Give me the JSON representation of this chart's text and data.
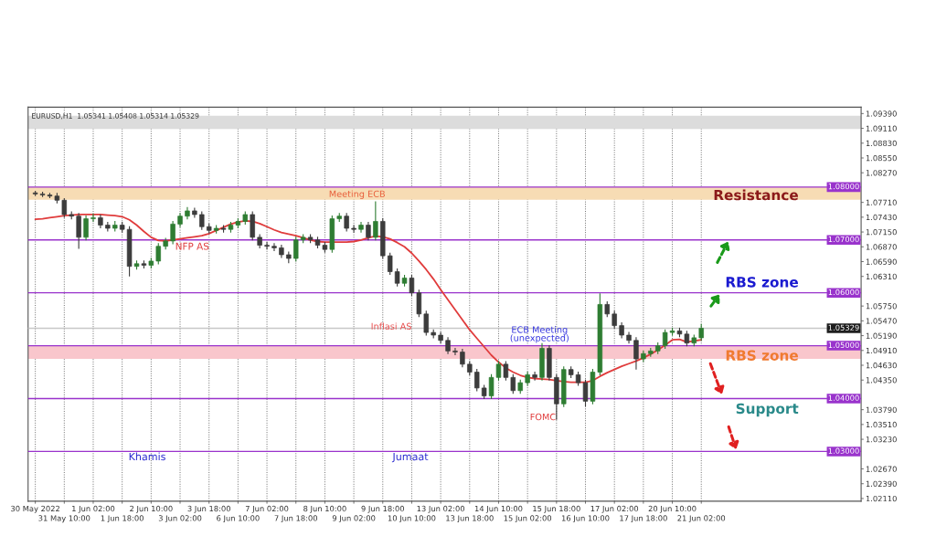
{
  "chart_data": {
    "type": "candlestick",
    "categories": [
      "30 May 2022",
      null,
      null,
      null,
      "31 May 10:00",
      null,
      null,
      null,
      "1 Jun 02:00",
      null,
      null,
      null,
      "1 Jun 18:00",
      null,
      null,
      null,
      "2 Jun 10:00",
      null,
      null,
      null,
      "3 Jun 02:00",
      null,
      null,
      null,
      "3 Jun 18:00",
      null,
      null,
      null,
      "6 Jun 10:00",
      null,
      null,
      null,
      "7 Jun 02:00",
      null,
      null,
      null,
      "7 Jun 18:00",
      null,
      null,
      null,
      "8 Jun 10:00",
      null,
      null,
      null,
      "9 Jun 02:00",
      null,
      null,
      null,
      "9 Jun 18:00",
      null,
      null,
      null,
      "10 Jun 10:00",
      null,
      null,
      null,
      "13 Jun 02:00",
      null,
      null,
      null,
      "13 Jun 18:00",
      null,
      null,
      null,
      "14 Jun 10:00",
      null,
      null,
      null,
      "15 Jun 02:00",
      null,
      null,
      null,
      "15 Jun 18:00",
      null,
      null,
      null,
      "16 Jun 10:00",
      null,
      null,
      null,
      "17 Jun 02:00",
      null,
      null,
      null,
      "17 Jun 18:00",
      null,
      null,
      null,
      "20 Jun 10:00",
      null,
      null,
      null,
      "21 Jun 02:00"
    ],
    "ylim": [
      1.0206,
      1.0951
    ],
    "yticks": [
      {
        "value": 1.0211,
        "label": "1.02110"
      },
      {
        "value": 1.0239,
        "label": "1.02390"
      },
      {
        "value": 1.0267,
        "label": "1.02670"
      },
      {
        "value": 1.0323,
        "label": "1.03230"
      },
      {
        "value": 1.0351,
        "label": "1.03510"
      },
      {
        "value": 1.0379,
        "label": "1.03790"
      },
      {
        "value": 1.0435,
        "label": "1.04350"
      },
      {
        "value": 1.0463,
        "label": "1.04630"
      },
      {
        "value": 1.0491,
        "label": "1.04910"
      },
      {
        "value": 1.0519,
        "label": "1.05190"
      },
      {
        "value": 1.0547,
        "label": "1.05470"
      },
      {
        "value": 1.0575,
        "label": "1.05750"
      },
      {
        "value": 1.0631,
        "label": "1.06310"
      },
      {
        "value": 1.0659,
        "label": "1.06590"
      },
      {
        "value": 1.0687,
        "label": "1.06870"
      },
      {
        "value": 1.0715,
        "label": "1.07150"
      },
      {
        "value": 1.0743,
        "label": "1.07430"
      },
      {
        "value": 1.0771,
        "label": "1.07710"
      },
      {
        "value": 1.0827,
        "label": "1.08270"
      },
      {
        "value": 1.0855,
        "label": "1.08550"
      },
      {
        "value": 1.0883,
        "label": "1.08830"
      },
      {
        "value": 1.0911,
        "label": "1.09110"
      },
      {
        "value": 1.0939,
        "label": "1.09390"
      }
    ],
    "grid": "x",
    "series": [
      {
        "ohlc": [
          [
            1.0789,
            1.0793,
            1.0783,
            1.0787
          ],
          [
            1.0787,
            1.0791,
            1.0781,
            1.0785
          ],
          [
            1.0785,
            1.0789,
            1.0779,
            1.0783
          ],
          [
            1.0783,
            1.0789,
            1.0769,
            1.0775
          ],
          [
            1.0775,
            1.0779,
            1.0742,
            1.0748
          ],
          [
            1.0748,
            1.0754,
            1.0739,
            1.0745
          ],
          [
            1.0745,
            1.0751,
            1.0683,
            1.0705
          ],
          [
            1.0705,
            1.0746,
            1.0699,
            1.074
          ],
          [
            1.074,
            1.075,
            1.0734,
            1.0742
          ],
          [
            1.0742,
            1.0748,
            1.0722,
            1.0728
          ],
          [
            1.0728,
            1.0734,
            1.0716,
            1.0722
          ],
          [
            1.0722,
            1.0736,
            1.0716,
            1.0728
          ],
          [
            1.0728,
            1.0734,
            1.0714,
            1.072
          ],
          [
            1.072,
            1.0726,
            1.0631,
            1.065
          ],
          [
            1.065,
            1.0661,
            1.0644,
            1.0655
          ],
          [
            1.0655,
            1.0661,
            1.0646,
            1.0652
          ],
          [
            1.0652,
            1.0666,
            1.0646,
            1.066
          ],
          [
            1.066,
            1.0694,
            1.0654,
            1.0688
          ],
          [
            1.0688,
            1.0704,
            1.0682,
            1.0698
          ],
          [
            1.0698,
            1.0736,
            1.0692,
            1.073
          ],
          [
            1.073,
            1.0751,
            1.0724,
            1.0745
          ],
          [
            1.0745,
            1.0762,
            1.0739,
            1.0755
          ],
          [
            1.0755,
            1.0761,
            1.0742,
            1.0748
          ],
          [
            1.0748,
            1.0754,
            1.0719,
            1.0725
          ],
          [
            1.0725,
            1.0731,
            1.0712,
            1.0718
          ],
          [
            1.0718,
            1.0728,
            1.0712,
            1.0722
          ],
          [
            1.0722,
            1.0728,
            1.0714,
            1.072
          ],
          [
            1.072,
            1.0734,
            1.0714,
            1.0728
          ],
          [
            1.0728,
            1.0741,
            1.0722,
            1.0735
          ],
          [
            1.0735,
            1.0754,
            1.0729,
            1.0748
          ],
          [
            1.0748,
            1.0754,
            1.0699,
            1.0705
          ],
          [
            1.0705,
            1.0711,
            1.0684,
            1.069
          ],
          [
            1.069,
            1.0696,
            1.0682,
            1.0688
          ],
          [
            1.0688,
            1.0694,
            1.0679,
            1.0685
          ],
          [
            1.0685,
            1.0691,
            1.0666,
            1.0672
          ],
          [
            1.0672,
            1.0678,
            1.0656,
            1.0665
          ],
          [
            1.0665,
            1.0706,
            1.0659,
            1.07
          ],
          [
            1.07,
            1.0711,
            1.0694,
            1.0705
          ],
          [
            1.0705,
            1.0711,
            1.0694,
            1.07
          ],
          [
            1.07,
            1.0706,
            1.0684,
            1.069
          ],
          [
            1.069,
            1.0696,
            1.0676,
            1.0682
          ],
          [
            1.0682,
            1.0746,
            1.0676,
            1.074
          ],
          [
            1.074,
            1.0751,
            1.0734,
            1.0745
          ],
          [
            1.0745,
            1.0751,
            1.0716,
            1.0722
          ],
          [
            1.0722,
            1.0728,
            1.0714,
            1.072
          ],
          [
            1.072,
            1.0734,
            1.0714,
            1.0728
          ],
          [
            1.0728,
            1.0734,
            1.0699,
            1.0705
          ],
          [
            1.0705,
            1.0773,
            1.0699,
            1.0735
          ],
          [
            1.0735,
            1.0741,
            1.0664,
            1.067
          ],
          [
            1.067,
            1.0676,
            1.0634,
            1.064
          ],
          [
            1.064,
            1.0646,
            1.0612,
            1.0618
          ],
          [
            1.0618,
            1.0634,
            1.0612,
            1.0628
          ],
          [
            1.0628,
            1.0634,
            1.0594,
            1.06
          ],
          [
            1.06,
            1.0606,
            1.0554,
            1.056
          ],
          [
            1.056,
            1.0566,
            1.0519,
            1.0525
          ],
          [
            1.0525,
            1.0531,
            1.0514,
            1.052
          ],
          [
            1.052,
            1.0526,
            1.0504,
            1.051
          ],
          [
            1.051,
            1.0516,
            1.0484,
            1.049
          ],
          [
            1.049,
            1.0496,
            1.0482,
            1.0488
          ],
          [
            1.0488,
            1.0494,
            1.0459,
            1.0465
          ],
          [
            1.0465,
            1.0471,
            1.0444,
            1.045
          ],
          [
            1.045,
            1.0456,
            1.0414,
            1.042
          ],
          [
            1.042,
            1.0426,
            1.0399,
            1.0405
          ],
          [
            1.0405,
            1.0446,
            1.0399,
            1.044
          ],
          [
            1.044,
            1.0471,
            1.0434,
            1.0465
          ],
          [
            1.0465,
            1.0471,
            1.0434,
            1.044
          ],
          [
            1.044,
            1.0446,
            1.0409,
            1.0415
          ],
          [
            1.0415,
            1.0436,
            1.0409,
            1.043
          ],
          [
            1.043,
            1.0451,
            1.0424,
            1.0445
          ],
          [
            1.0445,
            1.0451,
            1.0434,
            1.044
          ],
          [
            1.044,
            1.0505,
            1.0434,
            1.0495
          ],
          [
            1.0495,
            1.0501,
            1.0434,
            1.044
          ],
          [
            1.044,
            1.0446,
            1.036,
            1.039
          ],
          [
            1.039,
            1.0461,
            1.0384,
            1.0455
          ],
          [
            1.0455,
            1.0461,
            1.0439,
            1.0445
          ],
          [
            1.0445,
            1.0451,
            1.0424,
            1.043
          ],
          [
            1.043,
            1.0436,
            1.0385,
            1.0395
          ],
          [
            1.0395,
            1.0456,
            1.0389,
            1.045
          ],
          [
            1.045,
            1.0599,
            1.0444,
            1.0578
          ],
          [
            1.0578,
            1.0584,
            1.0554,
            1.056
          ],
          [
            1.056,
            1.0566,
            1.0532,
            1.0538
          ],
          [
            1.0538,
            1.0544,
            1.0514,
            1.052
          ],
          [
            1.052,
            1.0526,
            1.0504,
            1.051
          ],
          [
            1.051,
            1.0516,
            1.0455,
            1.0475
          ],
          [
            1.0475,
            1.0491,
            1.0469,
            1.0485
          ],
          [
            1.0485,
            1.0496,
            1.0479,
            1.049
          ],
          [
            1.049,
            1.0506,
            1.0484,
            1.05
          ],
          [
            1.05,
            1.0531,
            1.0494,
            1.0525
          ],
          [
            1.0525,
            1.0534,
            1.0519,
            1.0528
          ],
          [
            1.0528,
            1.0534,
            1.0516,
            1.0522
          ],
          [
            1.0522,
            1.0528,
            1.0499,
            1.0505
          ],
          [
            1.0505,
            1.0521,
            1.0499,
            1.0515
          ],
          [
            1.0515,
            1.0541,
            1.0509,
            1.0533
          ]
        ],
        "colors": [
          "#3c3c3c",
          "#3c3c3c",
          "#3c3c3c",
          "#3c3c3c",
          "#3c3c3c",
          "#3c3c3c",
          "#3c3c3c",
          "#2e7d32",
          "#2e7d32",
          "#3c3c3c",
          "#3c3c3c",
          "#2e7d32",
          "#3c3c3c",
          "#3c3c3c",
          "#2e7d32",
          "#3c3c3c",
          "#2e7d32",
          "#2e7d32",
          "#2e7d32",
          "#2e7d32",
          "#2e7d32",
          "#2e7d32",
          "#3c3c3c",
          "#3c3c3c",
          "#3c3c3c",
          "#2e7d32",
          "#3c3c3c",
          "#2e7d32",
          "#2e7d32",
          "#2e7d32",
          "#3c3c3c",
          "#3c3c3c",
          "#3c3c3c",
          "#3c3c3c",
          "#3c3c3c",
          "#3c3c3c",
          "#2e7d32",
          "#2e7d32",
          "#3c3c3c",
          "#3c3c3c",
          "#3c3c3c",
          "#2e7d32",
          "#2e7d32",
          "#3c3c3c",
          "#3c3c3c",
          "#2e7d32",
          "#3c3c3c",
          "#2e7d32",
          "#3c3c3c",
          "#3c3c3c",
          "#3c3c3c",
          "#2e7d32",
          "#3c3c3c",
          "#3c3c3c",
          "#3c3c3c",
          "#3c3c3c",
          "#3c3c3c",
          "#3c3c3c",
          "#3c3c3c",
          "#3c3c3c",
          "#3c3c3c",
          "#3c3c3c",
          "#3c3c3c",
          "#2e7d32",
          "#2e7d32",
          "#3c3c3c",
          "#3c3c3c",
          "#2e7d32",
          "#2e7d32",
          "#3c3c3c",
          "#2e7d32",
          "#3c3c3c",
          "#3c3c3c",
          "#2e7d32",
          "#3c3c3c",
          "#3c3c3c",
          "#3c3c3c",
          "#2e7d32",
          "#2e7d32",
          "#3c3c3c",
          "#3c3c3c",
          "#3c3c3c",
          "#3c3c3c",
          "#3c3c3c",
          "#2e7d32",
          "#2e7d32",
          "#2e7d32",
          "#2e7d32",
          "#2e7d32",
          "#3c3c3c",
          "#3c3c3c",
          "#2e7d32",
          "#2e7d32"
        ]
      },
      {
        "type": "line",
        "color": "#e03c3c",
        "values": [
          1.0739,
          1.074,
          1.0742,
          1.0744,
          1.0746,
          1.0747,
          1.0748,
          1.0748,
          1.0748,
          1.0748,
          1.0747,
          1.0746,
          1.0744,
          1.0738,
          1.0728,
          1.0716,
          1.0705,
          1.0699,
          1.0698,
          1.07,
          1.0702,
          1.0704,
          1.0706,
          1.0708,
          1.0712,
          1.0718,
          1.0724,
          1.073,
          1.0734,
          1.0736,
          1.0735,
          1.0731,
          1.0725,
          1.0719,
          1.0714,
          1.0711,
          1.0708,
          1.0704,
          1.07,
          1.0697,
          1.0696,
          1.0696,
          1.0696,
          1.0696,
          1.0697,
          1.07,
          1.0704,
          1.0707,
          1.0706,
          1.0702,
          1.0695,
          1.0687,
          1.0675,
          1.066,
          1.0644,
          1.0626,
          1.0606,
          1.0587,
          1.0568,
          1.0549,
          1.053,
          1.0514,
          1.0498,
          1.0482,
          1.0469,
          1.0458,
          1.045,
          1.0444,
          1.044,
          1.0438,
          1.0437,
          1.0436,
          1.0434,
          1.0432,
          1.0431,
          1.0431,
          1.0431,
          1.0434,
          1.0442,
          1.0449,
          1.0455,
          1.0461,
          1.0466,
          1.0471,
          1.0477,
          1.0484,
          1.0492,
          1.0501,
          1.0511,
          1.0512,
          1.0507,
          1.0509,
          1.0511
        ]
      }
    ],
    "bands": [
      {
        "axis": "y",
        "from": 1.0776,
        "to": 1.08,
        "color": "#f7dcb4"
      },
      {
        "axis": "y",
        "from": 1.0475,
        "to": 1.05,
        "color": "#f9c6cc"
      },
      {
        "axis": "y",
        "from": 1.091,
        "to": 1.0935,
        "color": "#dcdcdc"
      }
    ],
    "ref_lines": [
      {
        "axis": "y",
        "value": 1.08,
        "label": "1.08000",
        "color": "#9933cc"
      },
      {
        "axis": "y",
        "value": 1.07,
        "label": "1.07000",
        "color": "#9933cc"
      },
      {
        "axis": "y",
        "value": 1.06,
        "label": "1.06000",
        "color": "#9933cc"
      },
      {
        "axis": "y",
        "value": 1.05,
        "label": "1.05000",
        "color": "#9933cc"
      },
      {
        "axis": "y",
        "value": 1.04,
        "label": "1.04000",
        "color": "#9933cc"
      },
      {
        "axis": "y",
        "value": 1.03,
        "label": "1.03000",
        "color": "#9933cc"
      },
      {
        "axis": "y",
        "value": 1.05329,
        "label": "1.05329",
        "color": "#c8c8c8"
      }
    ],
    "annotations": [
      "EURUSD,H1  1.05341 1.05408 1.05314 1.05329",
      "Meeting ECB",
      "NFP AS",
      "Inflasi AS",
      "ECB Meeting\n(unexpected)",
      "FOMC",
      "Khamis",
      "Jumaat",
      "Resistance",
      "RBS zone",
      "RBS zone",
      "Support"
    ]
  }
}
